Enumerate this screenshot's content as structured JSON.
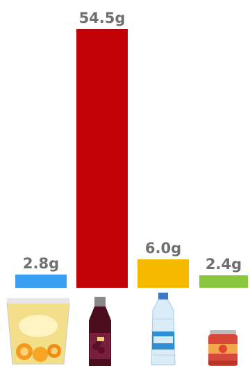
{
  "chart_data": {
    "type": "bar",
    "categories": [
      "juice-cup",
      "grape-juice-bottle",
      "water-bottle",
      "soda-can"
    ],
    "values": [
      2.8,
      54.5,
      6.0,
      2.4
    ],
    "labels": [
      "2.8g",
      "54.5g",
      "6.0g",
      "2.4g"
    ],
    "colors": [
      "#3a9ff0",
      "#c10008",
      "#f7b800",
      "#8ac63f"
    ],
    "ylim": [
      0,
      54.5
    ],
    "grid": false,
    "legend": "none",
    "category_icons": [
      "orange-juice-cup-icon",
      "grape-juice-bottle-icon",
      "water-bottle-icon",
      "soda-can-icon"
    ]
  }
}
